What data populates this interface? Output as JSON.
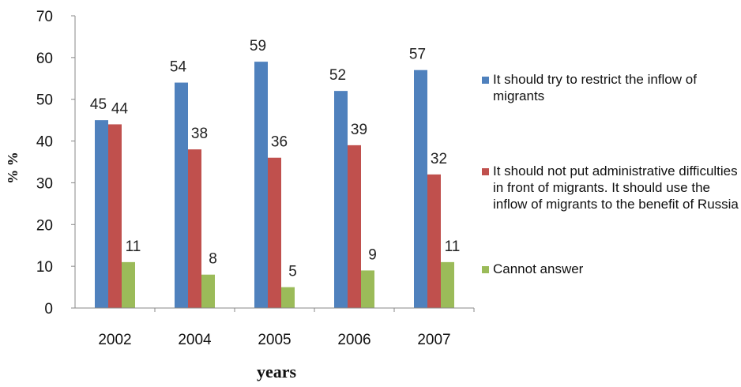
{
  "chart_data": {
    "type": "bar",
    "title": "",
    "xlabel": "years",
    "ylabel": "% %",
    "categories": [
      "2002",
      "2004",
      "2005",
      "2006",
      "2007"
    ],
    "ylim": [
      0,
      70
    ],
    "yticks": [
      0,
      10,
      20,
      30,
      40,
      50,
      60,
      70
    ],
    "grid": false,
    "legend_position": "right",
    "series": [
      {
        "name": "It should try to restrict the inflow of migrants",
        "values": [
          45,
          54,
          59,
          52,
          57
        ],
        "color": "#4F81BD"
      },
      {
        "name": "It should not put administrative difficulties in front of migrants. It should use the inflow of migrants to the benefit of Russia",
        "values": [
          44,
          38,
          36,
          39,
          32
        ],
        "color": "#C0504D"
      },
      {
        "name": "Cannot answer",
        "values": [
          11,
          8,
          5,
          9,
          11
        ],
        "color": "#9BBB59"
      }
    ]
  }
}
